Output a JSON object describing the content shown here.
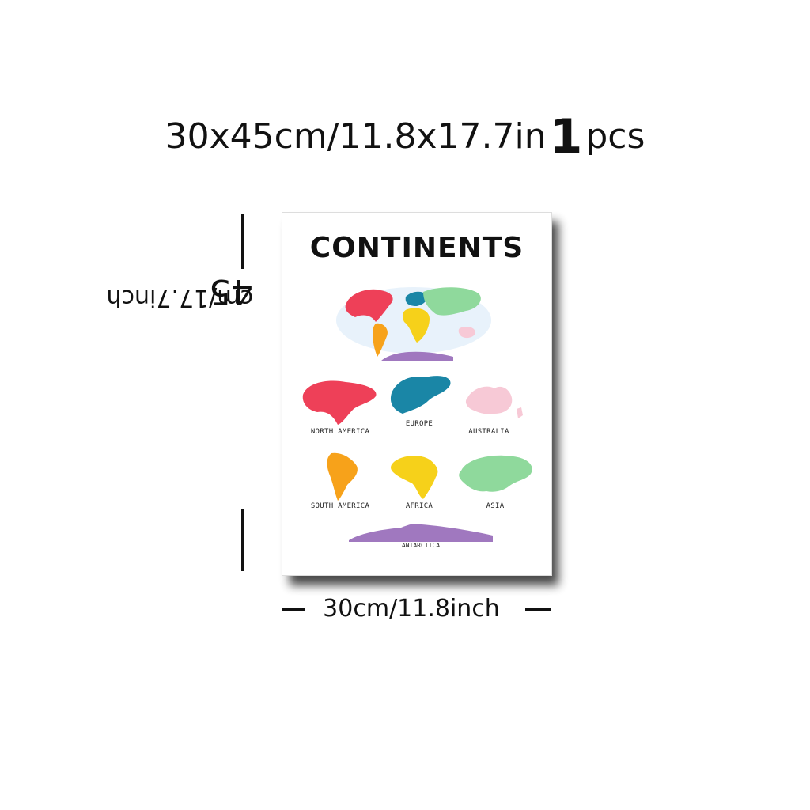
{
  "headline": {
    "size_text": "30x45cm/11.8x17.7in",
    "quantity": "1",
    "unit": "pcs"
  },
  "poster": {
    "title": "CONTINENTS",
    "continents": [
      {
        "label": "NORTH AMERICA",
        "color": "#ee4058"
      },
      {
        "label": "EUROPE",
        "color": "#1a86a6"
      },
      {
        "label": "AUSTRALIA",
        "color": "#f7c9d6"
      },
      {
        "label": "SOUTH AMERICA",
        "color": "#f7a21a"
      },
      {
        "label": "AFRICA",
        "color": "#f6d11a"
      },
      {
        "label": "ASIA",
        "color": "#8fd99c"
      },
      {
        "label": "ANTARCTICA",
        "color": "#a078bf"
      }
    ]
  },
  "dimensions": {
    "height_num": "45",
    "height_rest": "cm/17.7inch",
    "width_text": "30cm/11.8inch"
  }
}
